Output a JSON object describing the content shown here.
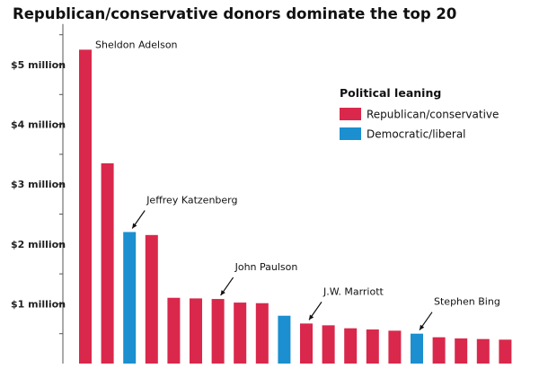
{
  "chart_data": {
    "type": "bar",
    "title": "Republican/conservative donors dominate the top 20",
    "xlabel": "",
    "ylabel": "",
    "ylim": [
      0,
      5.5
    ],
    "yticks": [
      {
        "value": 1,
        "label": "$1 million"
      },
      {
        "value": 2,
        "label": "$2 million"
      },
      {
        "value": 3,
        "label": "$3 million"
      },
      {
        "value": 4,
        "label": "$4 million"
      },
      {
        "value": 5,
        "label": "$5 million"
      }
    ],
    "grid": false,
    "series": [
      {
        "name": "Republican/conservative",
        "color": "#d9284b"
      },
      {
        "name": "Democratic/liberal",
        "color": "#1b8fcf"
      }
    ],
    "bars": [
      {
        "value": 5.25,
        "series": 0
      },
      {
        "value": 3.35,
        "series": 0
      },
      {
        "value": 2.2,
        "series": 1
      },
      {
        "value": 2.15,
        "series": 0
      },
      {
        "value": 1.1,
        "series": 0
      },
      {
        "value": 1.09,
        "series": 0
      },
      {
        "value": 1.08,
        "series": 0
      },
      {
        "value": 1.02,
        "series": 0
      },
      {
        "value": 1.01,
        "series": 0
      },
      {
        "value": 0.8,
        "series": 1
      },
      {
        "value": 0.67,
        "series": 0
      },
      {
        "value": 0.64,
        "series": 0
      },
      {
        "value": 0.59,
        "series": 0
      },
      {
        "value": 0.57,
        "series": 0
      },
      {
        "value": 0.55,
        "series": 0
      },
      {
        "value": 0.5,
        "series": 1
      },
      {
        "value": 0.44,
        "series": 0
      },
      {
        "value": 0.42,
        "series": 0
      },
      {
        "value": 0.41,
        "series": 0
      },
      {
        "value": 0.4,
        "series": 0
      }
    ],
    "annotations": [
      {
        "text": "Sheldon Adelson",
        "bar": 0,
        "arrow": false
      },
      {
        "text": "Jeffrey Katzenberg",
        "bar": 2,
        "arrow": true
      },
      {
        "text": "John Paulson",
        "bar": 6,
        "arrow": true
      },
      {
        "text": "J.W. Marriott",
        "bar": 10,
        "arrow": true
      },
      {
        "text": "Stephen Bing",
        "bar": 15,
        "arrow": true
      }
    ],
    "legend": {
      "title": "Political leaning",
      "position": "top-right"
    }
  }
}
